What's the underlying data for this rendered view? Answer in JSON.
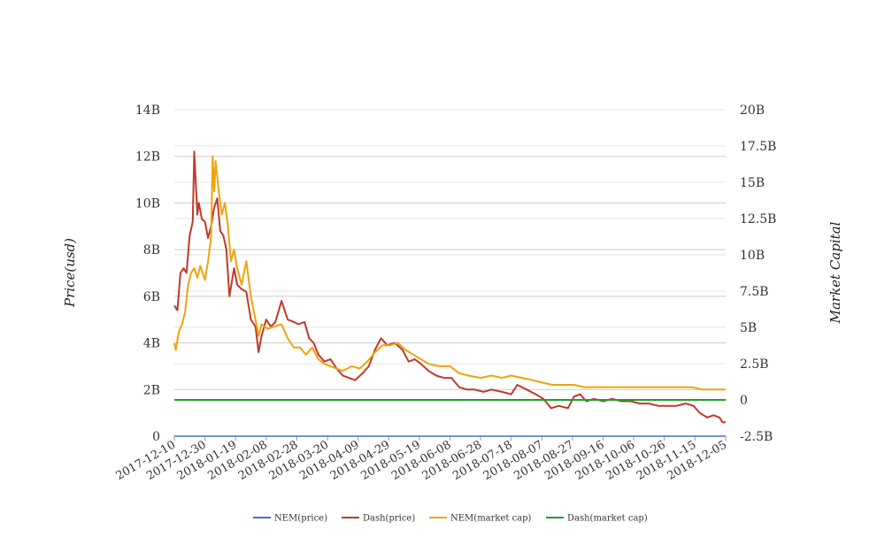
{
  "chart_data": {
    "type": "line",
    "title": "",
    "y_left": {
      "label": "Price(usd)",
      "ticks": [
        "0",
        "2B",
        "4B",
        "6B",
        "8B",
        "10B",
        "12B",
        "14B"
      ],
      "range": [
        0,
        14
      ]
    },
    "y_right": {
      "label": "Market Capital",
      "ticks": [
        "-2.5B",
        "0",
        "2.5B",
        "5B",
        "7.5B",
        "10B",
        "12.5B",
        "15B",
        "17.5B",
        "20B"
      ],
      "range": [
        -2.5,
        20
      ]
    },
    "x": {
      "ticks": [
        "2017-12-10",
        "2017-12-30",
        "2018-01-19",
        "2018-02-08",
        "2018-02-28",
        "2018-03-20",
        "2018-04-09",
        "2018-04-29",
        "2018-05-19",
        "2018-06-08",
        "2018-06-28",
        "2018-07-18",
        "2018-08-07",
        "2018-08-27",
        "2018-09-16",
        "2018-10-06",
        "2018-10-26",
        "2018-11-15",
        "2018-12-05"
      ],
      "start": "2017-12-10",
      "end": "2018-12-05"
    },
    "grid": true,
    "legend_position": "bottom",
    "series": [
      {
        "name": "NEM(price)",
        "color": "#4472c4",
        "axis": "left",
        "points": [
          [
            "2017-12-10",
            0.0
          ],
          [
            "2018-12-05",
            0.0
          ]
        ]
      },
      {
        "name": "Dash(price)",
        "color": "#c0392b",
        "axis": "left",
        "points": [
          [
            "2017-12-10",
            5.6
          ],
          [
            "2017-12-12",
            5.4
          ],
          [
            "2017-12-14",
            7.0
          ],
          [
            "2017-12-16",
            7.2
          ],
          [
            "2017-12-18",
            7.0
          ],
          [
            "2017-12-20",
            8.6
          ],
          [
            "2017-12-22",
            9.2
          ],
          [
            "2017-12-23",
            12.2
          ],
          [
            "2017-12-25",
            9.5
          ],
          [
            "2017-12-26",
            10.0
          ],
          [
            "2017-12-28",
            9.3
          ],
          [
            "2017-12-30",
            9.2
          ],
          [
            "2018-01-01",
            8.5
          ],
          [
            "2018-01-03",
            9.0
          ],
          [
            "2018-01-05",
            9.8
          ],
          [
            "2018-01-07",
            10.2
          ],
          [
            "2018-01-09",
            8.8
          ],
          [
            "2018-01-11",
            8.6
          ],
          [
            "2018-01-13",
            8.0
          ],
          [
            "2018-01-15",
            6.0
          ],
          [
            "2018-01-18",
            7.2
          ],
          [
            "2018-01-20",
            6.5
          ],
          [
            "2018-01-23",
            6.3
          ],
          [
            "2018-01-26",
            6.2
          ],
          [
            "2018-01-29",
            5.0
          ],
          [
            "2018-02-01",
            4.7
          ],
          [
            "2018-02-03",
            3.6
          ],
          [
            "2018-02-05",
            4.3
          ],
          [
            "2018-02-08",
            5.0
          ],
          [
            "2018-02-11",
            4.7
          ],
          [
            "2018-02-14",
            4.9
          ],
          [
            "2018-02-18",
            5.8
          ],
          [
            "2018-02-22",
            5.0
          ],
          [
            "2018-02-26",
            4.9
          ],
          [
            "2018-03-01",
            4.8
          ],
          [
            "2018-03-05",
            4.9
          ],
          [
            "2018-03-08",
            4.2
          ],
          [
            "2018-03-11",
            4.0
          ],
          [
            "2018-03-14",
            3.5
          ],
          [
            "2018-03-18",
            3.2
          ],
          [
            "2018-03-22",
            3.3
          ],
          [
            "2018-03-26",
            2.9
          ],
          [
            "2018-03-30",
            2.6
          ],
          [
            "2018-04-03",
            2.5
          ],
          [
            "2018-04-07",
            2.4
          ],
          [
            "2018-04-12",
            2.7
          ],
          [
            "2018-04-16",
            3.0
          ],
          [
            "2018-04-20",
            3.7
          ],
          [
            "2018-04-24",
            4.2
          ],
          [
            "2018-04-28",
            3.9
          ],
          [
            "2018-05-03",
            4.0
          ],
          [
            "2018-05-08",
            3.7
          ],
          [
            "2018-05-12",
            3.2
          ],
          [
            "2018-05-16",
            3.3
          ],
          [
            "2018-05-20",
            3.1
          ],
          [
            "2018-05-25",
            2.8
          ],
          [
            "2018-05-30",
            2.6
          ],
          [
            "2018-06-04",
            2.5
          ],
          [
            "2018-06-09",
            2.5
          ],
          [
            "2018-06-14",
            2.1
          ],
          [
            "2018-06-19",
            2.0
          ],
          [
            "2018-06-24",
            2.0
          ],
          [
            "2018-06-30",
            1.9
          ],
          [
            "2018-07-05",
            2.0
          ],
          [
            "2018-07-12",
            1.9
          ],
          [
            "2018-07-18",
            1.8
          ],
          [
            "2018-07-22",
            2.2
          ],
          [
            "2018-07-28",
            2.0
          ],
          [
            "2018-08-03",
            1.8
          ],
          [
            "2018-08-08",
            1.6
          ],
          [
            "2018-08-13",
            1.2
          ],
          [
            "2018-08-18",
            1.3
          ],
          [
            "2018-08-24",
            1.2
          ],
          [
            "2018-08-28",
            1.7
          ],
          [
            "2018-09-01",
            1.8
          ],
          [
            "2018-09-05",
            1.5
          ],
          [
            "2018-09-10",
            1.6
          ],
          [
            "2018-09-16",
            1.5
          ],
          [
            "2018-09-22",
            1.6
          ],
          [
            "2018-09-28",
            1.5
          ],
          [
            "2018-10-04",
            1.5
          ],
          [
            "2018-10-10",
            1.4
          ],
          [
            "2018-10-16",
            1.4
          ],
          [
            "2018-10-22",
            1.3
          ],
          [
            "2018-10-28",
            1.3
          ],
          [
            "2018-11-03",
            1.3
          ],
          [
            "2018-11-09",
            1.4
          ],
          [
            "2018-11-14",
            1.3
          ],
          [
            "2018-11-18",
            1.0
          ],
          [
            "2018-11-23",
            0.8
          ],
          [
            "2018-11-27",
            0.9
          ],
          [
            "2018-12-01",
            0.8
          ],
          [
            "2018-12-03",
            0.6
          ],
          [
            "2018-12-05",
            0.6
          ]
        ]
      },
      {
        "name": "NEM(market cap)",
        "color": "#f0a30a",
        "axis": "left",
        "points": [
          [
            "2017-12-10",
            4.0
          ],
          [
            "2017-12-11",
            3.7
          ],
          [
            "2017-12-13",
            4.5
          ],
          [
            "2017-12-15",
            4.8
          ],
          [
            "2017-12-17",
            5.3
          ],
          [
            "2017-12-19",
            6.5
          ],
          [
            "2017-12-21",
            7.0
          ],
          [
            "2017-12-23",
            7.2
          ],
          [
            "2017-12-25",
            6.8
          ],
          [
            "2017-12-27",
            7.3
          ],
          [
            "2017-12-30",
            6.7
          ],
          [
            "2018-01-01",
            7.5
          ],
          [
            "2018-01-03",
            8.5
          ],
          [
            "2018-01-04",
            12.0
          ],
          [
            "2018-01-05",
            10.5
          ],
          [
            "2018-01-06",
            11.8
          ],
          [
            "2018-01-08",
            10.5
          ],
          [
            "2018-01-10",
            9.5
          ],
          [
            "2018-01-12",
            10.0
          ],
          [
            "2018-01-14",
            9.0
          ],
          [
            "2018-01-16",
            7.5
          ],
          [
            "2018-01-18",
            8.0
          ],
          [
            "2018-01-20",
            7.2
          ],
          [
            "2018-01-23",
            6.5
          ],
          [
            "2018-01-26",
            7.5
          ],
          [
            "2018-01-29",
            6.0
          ],
          [
            "2018-02-01",
            5.0
          ],
          [
            "2018-02-03",
            4.3
          ],
          [
            "2018-02-05",
            4.8
          ],
          [
            "2018-02-09",
            4.6
          ],
          [
            "2018-02-13",
            4.7
          ],
          [
            "2018-02-18",
            4.8
          ],
          [
            "2018-02-22",
            4.2
          ],
          [
            "2018-02-26",
            3.8
          ],
          [
            "2018-03-02",
            3.8
          ],
          [
            "2018-03-06",
            3.5
          ],
          [
            "2018-03-10",
            3.8
          ],
          [
            "2018-03-14",
            3.3
          ],
          [
            "2018-03-18",
            3.1
          ],
          [
            "2018-03-22",
            3.0
          ],
          [
            "2018-03-26",
            2.9
          ],
          [
            "2018-03-30",
            2.8
          ],
          [
            "2018-04-05",
            3.0
          ],
          [
            "2018-04-10",
            2.9
          ],
          [
            "2018-04-15",
            3.2
          ],
          [
            "2018-04-20",
            3.6
          ],
          [
            "2018-04-25",
            3.9
          ],
          [
            "2018-04-30",
            3.9
          ],
          [
            "2018-05-05",
            4.0
          ],
          [
            "2018-05-10",
            3.7
          ],
          [
            "2018-05-15",
            3.5
          ],
          [
            "2018-05-20",
            3.3
          ],
          [
            "2018-05-25",
            3.1
          ],
          [
            "2018-06-01",
            3.0
          ],
          [
            "2018-06-08",
            3.0
          ],
          [
            "2018-06-14",
            2.7
          ],
          [
            "2018-06-20",
            2.6
          ],
          [
            "2018-06-28",
            2.5
          ],
          [
            "2018-07-05",
            2.6
          ],
          [
            "2018-07-12",
            2.5
          ],
          [
            "2018-07-18",
            2.6
          ],
          [
            "2018-07-25",
            2.5
          ],
          [
            "2018-08-01",
            2.4
          ],
          [
            "2018-08-07",
            2.3
          ],
          [
            "2018-08-14",
            2.2
          ],
          [
            "2018-08-21",
            2.2
          ],
          [
            "2018-08-28",
            2.2
          ],
          [
            "2018-09-04",
            2.1
          ],
          [
            "2018-09-11",
            2.1
          ],
          [
            "2018-09-18",
            2.1
          ],
          [
            "2018-09-25",
            2.1
          ],
          [
            "2018-10-02",
            2.1
          ],
          [
            "2018-10-09",
            2.1
          ],
          [
            "2018-10-16",
            2.1
          ],
          [
            "2018-10-23",
            2.1
          ],
          [
            "2018-10-30",
            2.1
          ],
          [
            "2018-11-06",
            2.1
          ],
          [
            "2018-11-13",
            2.1
          ],
          [
            "2018-11-20",
            2.0
          ],
          [
            "2018-11-27",
            2.0
          ],
          [
            "2018-12-05",
            2.0
          ]
        ]
      },
      {
        "name": "Dash(market cap)",
        "color": "#1e9e2a",
        "axis": "right",
        "points": [
          [
            "2017-12-10",
            0.0
          ],
          [
            "2018-12-05",
            0.0
          ]
        ]
      }
    ]
  }
}
